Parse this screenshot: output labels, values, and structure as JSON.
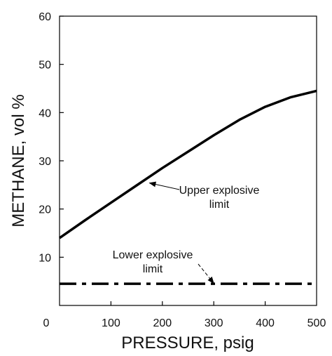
{
  "chart_data": {
    "type": "line",
    "title": "",
    "xlabel": "PRESSURE, psig",
    "ylabel": "METHANE, vol %",
    "xlim": [
      0,
      500
    ],
    "ylim": [
      0,
      60
    ],
    "xticks": [
      0,
      100,
      200,
      300,
      400,
      500
    ],
    "yticks": [
      10,
      20,
      30,
      40,
      50,
      60
    ],
    "grid": false,
    "legend": "none",
    "series": [
      {
        "style": "solid",
        "color": "#000000",
        "x": [
          0,
          50,
          100,
          150,
          200,
          250,
          300,
          350,
          400,
          450,
          500
        ],
        "y": [
          14,
          17.7,
          21.3,
          24.9,
          28.5,
          31.9,
          35.3,
          38.5,
          41.2,
          43.2,
          44.5
        ]
      },
      {
        "style": "dash-dot",
        "color": "#000000",
        "x": [
          0,
          500
        ],
        "y": [
          4.5,
          4.5
        ]
      }
    ],
    "annotations": [
      {
        "text_lines": [
          "Upper explosive",
          "limit"
        ],
        "target": [
          175,
          25.4
        ]
      },
      {
        "text_lines": [
          "Lower explosive",
          "limit"
        ],
        "target": [
          300,
          4.6
        ]
      }
    ]
  }
}
